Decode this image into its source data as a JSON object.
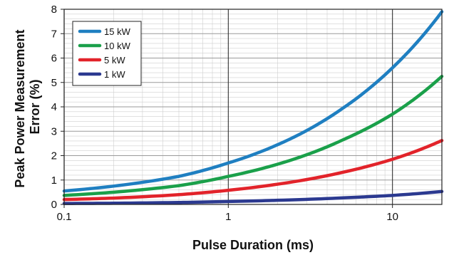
{
  "chart_data": {
    "type": "line",
    "xlabel": "Pulse Duration (ms)",
    "ylabel_lines": [
      "Peak Power Measurement",
      "Error (%)"
    ],
    "x_scale": "log",
    "xlim": [
      0.1,
      20
    ],
    "ylim": [
      0,
      8
    ],
    "x_ticks": [
      0.1,
      1,
      10
    ],
    "x_tick_labels": [
      "0.1",
      "1",
      "10"
    ],
    "y_ticks": [
      0,
      1,
      2,
      3,
      4,
      5,
      6,
      7,
      8
    ],
    "y_tick_labels": [
      "0",
      "1",
      "2",
      "3",
      "4",
      "5",
      "6",
      "7",
      "8"
    ],
    "grid": true,
    "legend_position": "top-left",
    "series": [
      {
        "name": "15 kW",
        "color": "#1f7fc1",
        "x": [
          0.1,
          0.2,
          0.5,
          1,
          2,
          5,
          10,
          20
        ],
        "y": [
          0.55,
          0.75,
          1.15,
          1.7,
          2.45,
          3.95,
          5.6,
          7.9
        ]
      },
      {
        "name": "10 kW",
        "color": "#1aa04a",
        "x": [
          0.1,
          0.2,
          0.5,
          1,
          2,
          5,
          10,
          20
        ],
        "y": [
          0.37,
          0.5,
          0.77,
          1.15,
          1.65,
          2.65,
          3.7,
          5.25
        ]
      },
      {
        "name": "5 kW",
        "color": "#e2232a",
        "x": [
          0.1,
          0.2,
          0.5,
          1,
          2,
          5,
          10,
          20
        ],
        "y": [
          0.2,
          0.26,
          0.4,
          0.58,
          0.83,
          1.32,
          1.85,
          2.62
        ]
      },
      {
        "name": "1 kW",
        "color": "#2b3990",
        "x": [
          0.1,
          0.2,
          0.5,
          1,
          2,
          5,
          10,
          20
        ],
        "y": [
          0.04,
          0.05,
          0.08,
          0.12,
          0.17,
          0.27,
          0.37,
          0.53
        ]
      }
    ]
  }
}
